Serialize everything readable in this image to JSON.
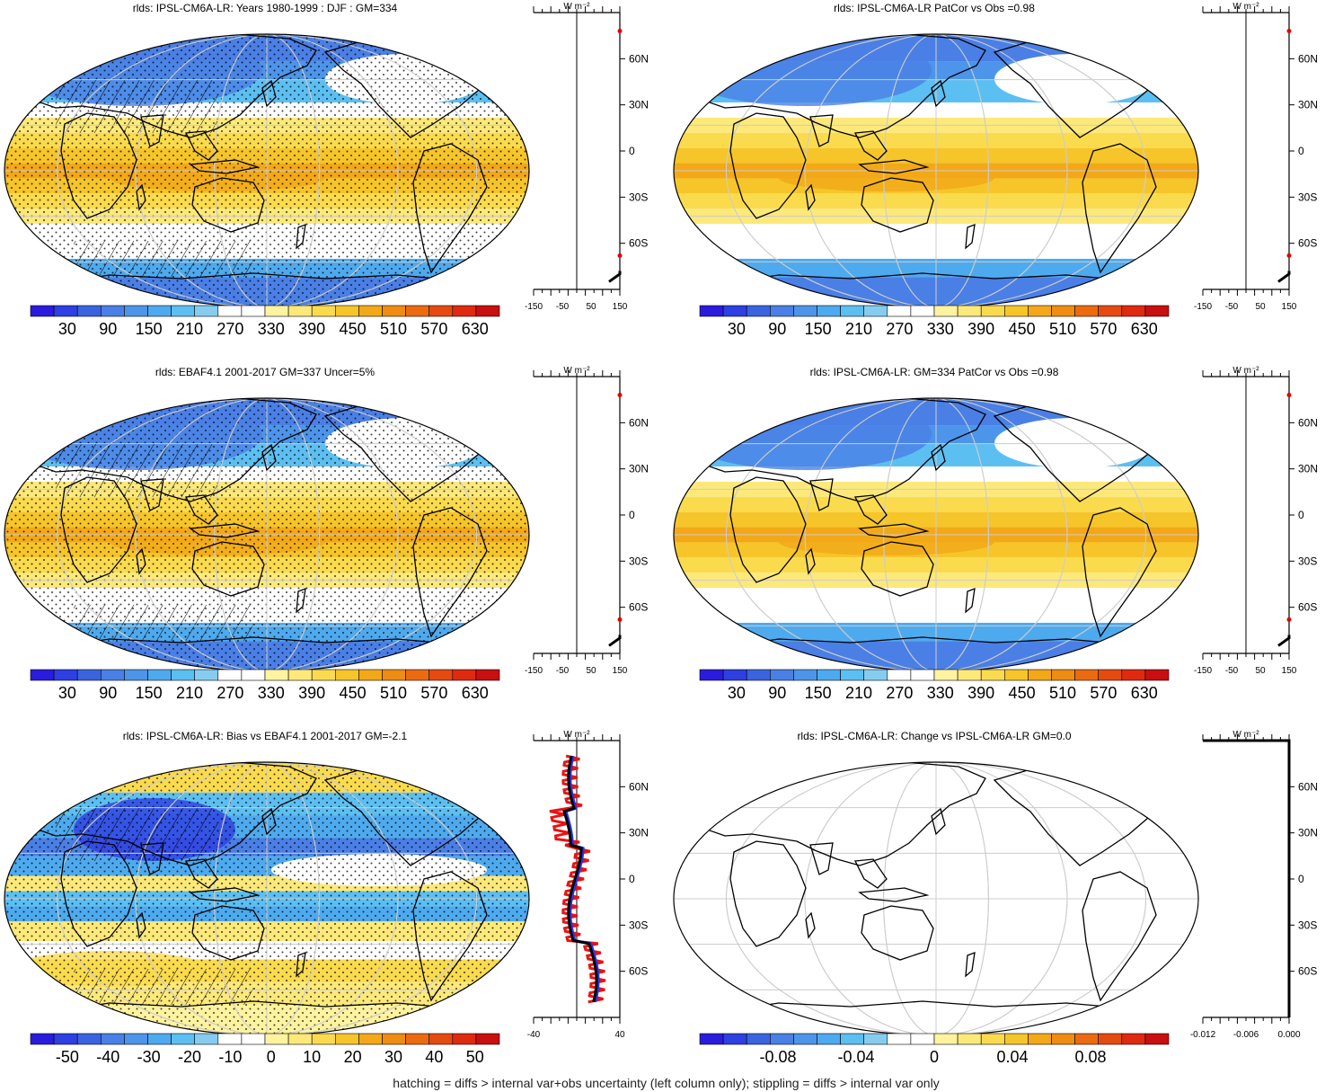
{
  "panels": [
    {
      "title": "rlds: IPSL-CM6A-LR: Years 1980-1999 : DJF : GM=334",
      "field": "clim",
      "hatch": true,
      "stipple": true,
      "colorbar_labels": [
        "30",
        "90",
        "150",
        "210",
        "270",
        "330",
        "390",
        "450",
        "510",
        "570",
        "630"
      ],
      "profile_unit": "W m⁻²",
      "profile_xticks": [
        "-150",
        "-50",
        "50",
        "150"
      ],
      "profile_yticks": [
        "60N",
        "30N",
        "0",
        "30S",
        "60S"
      ],
      "profile_kind": "flat"
    },
    {
      "title": "rlds: IPSL-CM6A-LR PatCor vs Obs =0.98",
      "field": "clim",
      "hatch": false,
      "stipple": false,
      "colorbar_labels": [
        "30",
        "90",
        "150",
        "210",
        "270",
        "330",
        "390",
        "450",
        "510",
        "570",
        "630"
      ],
      "profile_unit": "W m⁻²",
      "profile_xticks": [
        "-150",
        "-50",
        "50",
        "150"
      ],
      "profile_yticks": [
        "60N",
        "30N",
        "0",
        "30S",
        "60S"
      ],
      "profile_kind": "flat"
    },
    {
      "title": "rlds: EBAF4.1 2001-2017 GM=337 Uncer=5%",
      "field": "clim",
      "hatch": true,
      "stipple": true,
      "colorbar_labels": [
        "30",
        "90",
        "150",
        "210",
        "270",
        "330",
        "390",
        "450",
        "510",
        "570",
        "630"
      ],
      "profile_unit": "W m⁻²",
      "profile_xticks": [
        "-150",
        "-50",
        "50",
        "150"
      ],
      "profile_yticks": [
        "60N",
        "30N",
        "0",
        "30S",
        "60S"
      ],
      "profile_kind": "flat"
    },
    {
      "title": "rlds: IPSL-CM6A-LR: GM=334 PatCor vs Obs =0.98",
      "field": "clim",
      "hatch": false,
      "stipple": false,
      "colorbar_labels": [
        "30",
        "90",
        "150",
        "210",
        "270",
        "330",
        "390",
        "450",
        "510",
        "570",
        "630"
      ],
      "profile_unit": "W m⁻²",
      "profile_xticks": [
        "-150",
        "-50",
        "50",
        "150"
      ],
      "profile_yticks": [
        "60N",
        "30N",
        "0",
        "30S",
        "60S"
      ],
      "profile_kind": "flat"
    },
    {
      "title": "rlds: IPSL-CM6A-LR: Bias vs EBAF4.1 2001-2017 GM=-2.1",
      "field": "bias",
      "hatch": true,
      "stipple": true,
      "colorbar_labels": [
        "-50",
        "-40",
        "-30",
        "-20",
        "-10",
        "0",
        "10",
        "20",
        "30",
        "40",
        "50"
      ],
      "profile_unit": "W m⁻²",
      "profile_xticks": [
        "-40",
        "40"
      ],
      "profile_yticks": [
        "60N",
        "30N",
        "0",
        "30S",
        "60S"
      ],
      "profile_kind": "bias"
    },
    {
      "title": "rlds: IPSL-CM6A-LR: Change vs IPSL-CM6A-LR GM=0.0",
      "field": "empty",
      "hatch": false,
      "stipple": false,
      "colorbar_labels": [
        "-0.08",
        "-0.04",
        "0",
        "0.04",
        "0.08"
      ],
      "profile_unit": "W m⁻²",
      "profile_xticks": [
        "-0.012",
        "-0.006",
        "0.000"
      ],
      "profile_yticks": [
        "60N",
        "30N",
        "0",
        "30S",
        "60S"
      ],
      "profile_kind": "zero"
    }
  ],
  "colormap": [
    "#2a1cde",
    "#2e3fe3",
    "#3a63e0",
    "#4a7fe6",
    "#4c95ea",
    "#4eaaee",
    "#5cbff2",
    "#86ccf0",
    "#ffffff",
    "#ffffff",
    "#fff3a0",
    "#fde97a",
    "#fbdb4e",
    "#f6c52a",
    "#f3a818",
    "#ef8c12",
    "#ec6b10",
    "#e54a10",
    "#df2a10",
    "#c90f10"
  ],
  "footer": "hatching = diffs > internal var+obs uncertainty (left column only); stippling = diffs > internal var only"
}
